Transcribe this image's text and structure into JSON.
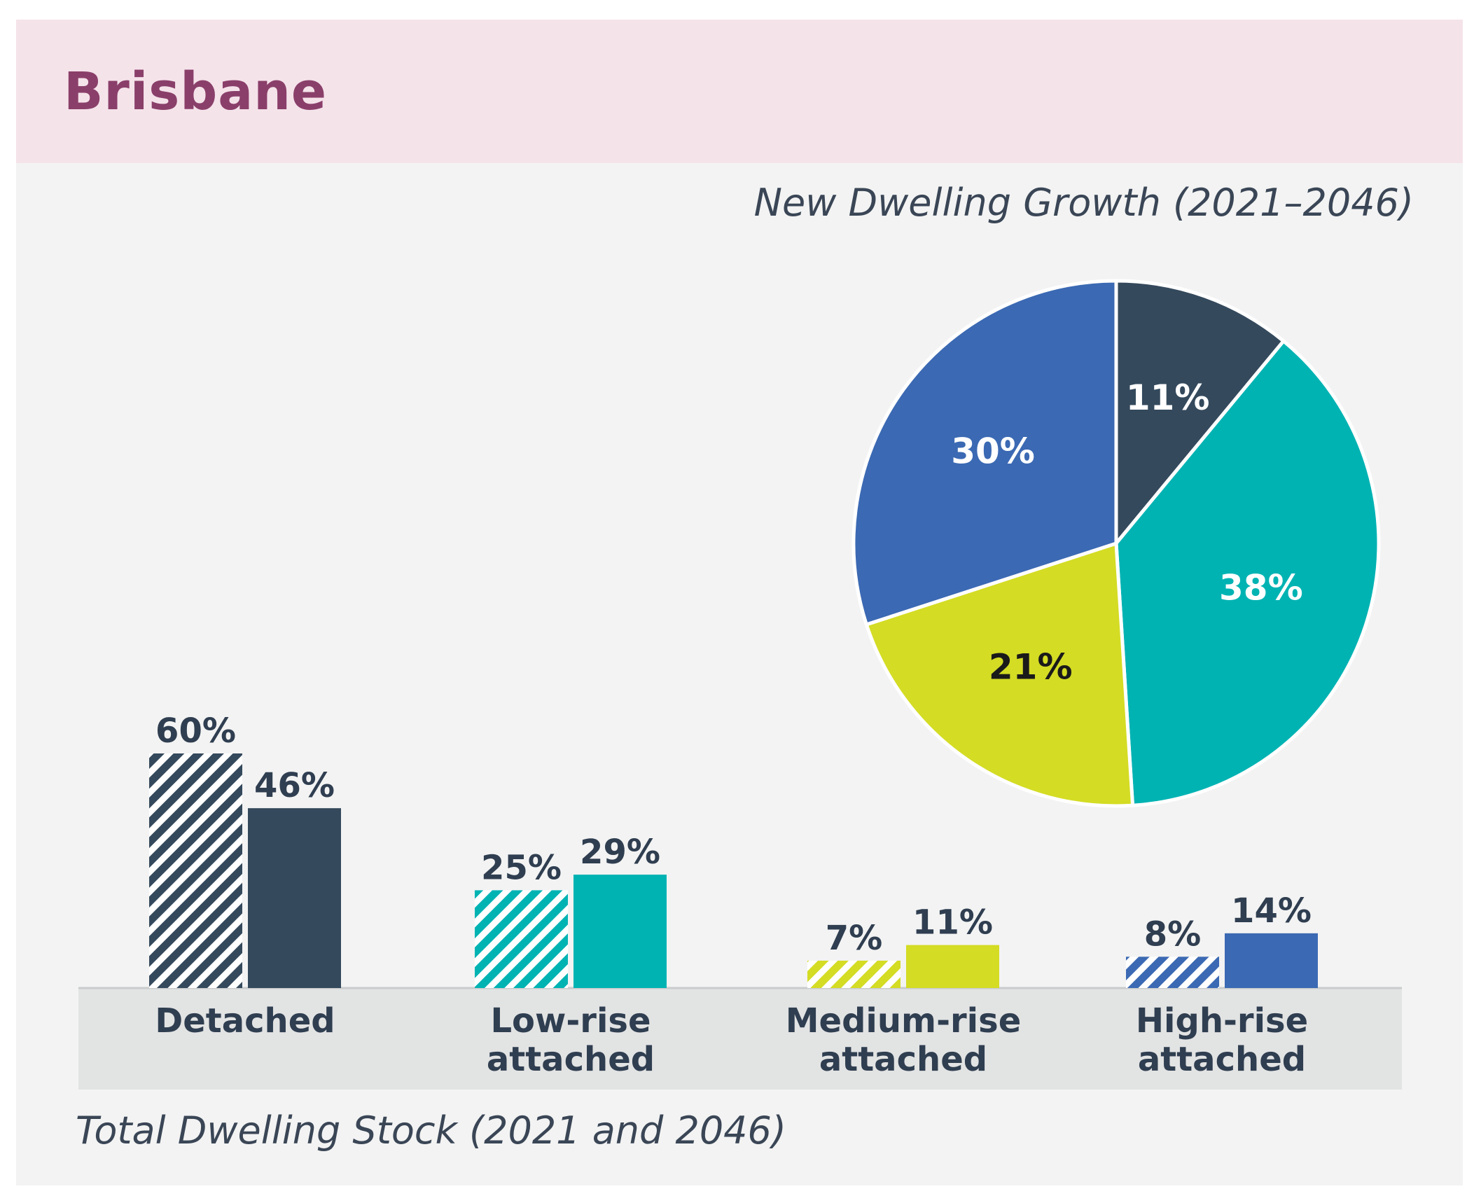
{
  "colors": {
    "detached": "#34495c",
    "low_rise": "#00b3b3",
    "medium_rise": "#d4dc24",
    "high_rise": "#3b69b3",
    "header_bg": "#f5e3ea",
    "title": "#8a3f6a",
    "axis_band": "#e2e3e3"
  },
  "chart_data": [
    {
      "type": "pie",
      "title": "New Dwelling Growth (2021–2046)",
      "slices": [
        {
          "label": "11%",
          "value": 11,
          "color": "#34495c",
          "text_color": "#ffffff"
        },
        {
          "label": "38%",
          "value": 38,
          "color": "#00b3b3",
          "text_color": "#ffffff"
        },
        {
          "label": "21%",
          "value": 21,
          "color": "#d4dc24",
          "text_color": "#1a1a1a"
        },
        {
          "label": "30%",
          "value": 30,
          "color": "#3b69b3",
          "text_color": "#ffffff"
        }
      ]
    },
    {
      "type": "bar",
      "title": "Total Dwelling Stock (2021 and 2046)",
      "categories": [
        [
          "Detached"
        ],
        [
          "Low-rise",
          "attached"
        ],
        [
          "Medium-rise",
          "attached"
        ],
        [
          "High-rise",
          "attached"
        ]
      ],
      "series": [
        {
          "values": [
            60,
            25,
            7,
            8
          ],
          "labels": [
            "60%",
            "25%",
            "7%",
            "8%"
          ],
          "hatched": true
        },
        {
          "values": [
            46,
            29,
            11,
            14
          ],
          "labels": [
            "46%",
            "29%",
            "11%",
            "14%"
          ],
          "hatched": false
        }
      ],
      "ylim": [
        0,
        60
      ]
    }
  ],
  "header": {
    "title": "Brisbane"
  }
}
